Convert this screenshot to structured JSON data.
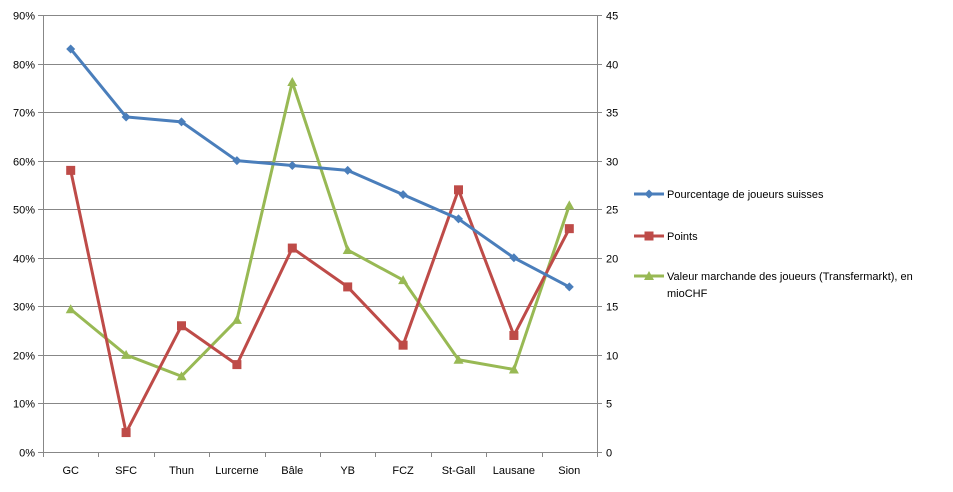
{
  "chart_data": {
    "type": "line",
    "categories": [
      "GC",
      "SFC",
      "Thun",
      "Lurcerne",
      "Bâle",
      "YB",
      "FCZ",
      "St-Gall",
      "Lausane",
      "Sion"
    ],
    "y_left": {
      "min": 0,
      "max": 90,
      "step": 10,
      "ticks": [
        "0%",
        "10%",
        "20%",
        "30%",
        "40%",
        "50%",
        "60%",
        "70%",
        "80%",
        "90%"
      ]
    },
    "y_right": {
      "min": 0,
      "max": 45,
      "step": 5,
      "ticks": [
        "0",
        "5",
        "10",
        "15",
        "20",
        "25",
        "30",
        "35",
        "40",
        "45"
      ]
    },
    "grid": true,
    "legend_position": "right",
    "series": [
      {
        "name": "Pourcentage de joueurs suisses",
        "axis": "left",
        "marker": "diamond",
        "color": "#4a7ebb",
        "values": [
          83,
          69,
          68,
          60,
          59,
          58,
          53,
          48,
          40,
          34
        ]
      },
      {
        "name": "Points",
        "axis": "right",
        "marker": "square",
        "color": "#be4b48",
        "values": [
          29,
          2,
          13,
          9,
          21,
          17,
          11,
          27,
          12,
          23
        ]
      },
      {
        "name": "Valeur marchande des joueurs (Transfermarkt), en mioCHF",
        "axis": "right",
        "marker": "triangle",
        "color": "#98b954",
        "values": [
          14.7,
          10,
          7.8,
          13.6,
          38.1,
          20.8,
          17.7,
          9.5,
          8.5,
          25.4
        ],
        "legend_lines": [
          "Valeur marchande des joueurs (Transfermarkt), en",
          "mioCHF"
        ]
      }
    ]
  }
}
